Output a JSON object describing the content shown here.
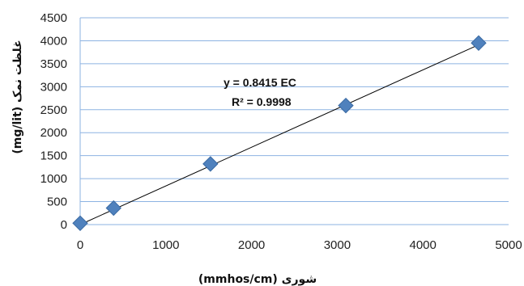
{
  "chart_data": {
    "type": "scatter",
    "title": "",
    "xlabel": "شوری (mmhos/cm)",
    "ylabel": "غلظت نمک (mg/lit)",
    "xlim": [
      0,
      5000
    ],
    "ylim": [
      0,
      4500
    ],
    "x_ticks": [
      "0",
      "1000",
      "2000",
      "3000",
      "4000",
      "5000"
    ],
    "y_ticks": [
      "0",
      "500",
      "1000",
      "1500",
      "2000",
      "2500",
      "3000",
      "3500",
      "4000",
      "4500"
    ],
    "grid": "horizontal",
    "series": [
      {
        "x": [
          0,
          390,
          1520,
          3100,
          4650
        ],
        "y": [
          30,
          360,
          1320,
          2590,
          3950
        ],
        "marker": "diamond",
        "color": "#4f81bd"
      }
    ],
    "trendline": {
      "slope": 0.8415,
      "intercept": 0,
      "color": "#000000",
      "equation": "y = 0.8415 EC",
      "r2_label": "R² = 0.9998"
    },
    "gridline_color": "#8db3e2"
  }
}
